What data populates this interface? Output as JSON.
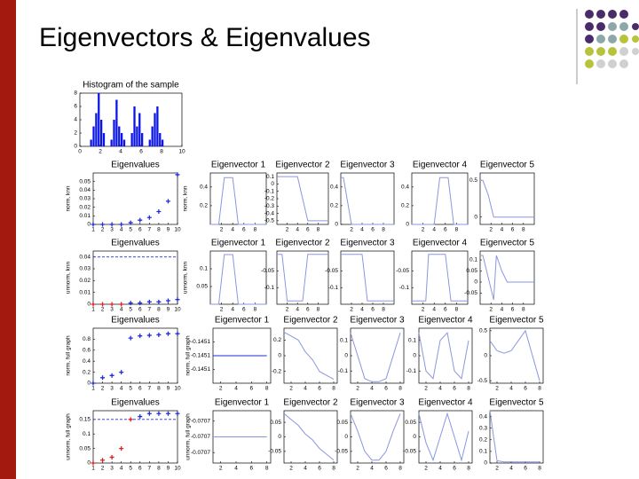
{
  "slide": {
    "title": "Eigenvectors & Eigenvalues"
  },
  "chart_data": [
    {
      "type": "histogram",
      "title": "Histogram of the sample",
      "color": "#0a14e6",
      "bins": [
        1,
        1.25,
        1.5,
        1.75,
        2,
        2.25,
        2.5,
        2.75,
        3,
        3.25,
        3.5,
        3.75,
        4,
        4.25,
        4.5,
        4.75,
        5,
        5.25,
        5.5,
        5.75,
        6,
        6.25,
        6.5,
        6.75,
        7,
        7.25,
        7.5,
        7.75,
        8,
        8.25,
        8.5
      ],
      "values": [
        1,
        3,
        5,
        8,
        4,
        2,
        0,
        0,
        1,
        4,
        7,
        3,
        2,
        1,
        0,
        0,
        2,
        6,
        3,
        5,
        2,
        0,
        0,
        1,
        3,
        5,
        6,
        2,
        1,
        0
      ],
      "xlim": [
        0,
        10
      ],
      "ylim": [
        0,
        8
      ],
      "xticks": [
        0,
        2,
        4,
        6,
        8,
        10
      ],
      "yticks": [
        0,
        2,
        4,
        6,
        8
      ]
    },
    {
      "type": "scatter",
      "title": "Eigenvalues",
      "ylabel": "norm, knn",
      "xlim": [
        1,
        10
      ],
      "ylim": [
        0,
        0.06
      ],
      "xticks": [
        1,
        2,
        3,
        4,
        5,
        6,
        7,
        8,
        9,
        10
      ],
      "yticks": [
        0,
        0.01,
        0.02,
        0.03,
        0.04,
        0.05
      ],
      "series": [
        {
          "color": "#1f2fd6",
          "x": [
            1,
            2,
            3,
            4,
            5,
            6,
            7,
            8,
            9,
            10
          ],
          "values": [
            0,
            0,
            0,
            0,
            0.002,
            0.005,
            0.008,
            0.015,
            0.027,
            0.058
          ]
        }
      ]
    },
    {
      "type": "line",
      "title": "Eigenvector 1",
      "ylabel": "norm, knn",
      "xlim": [
        0,
        10
      ],
      "ylim": [
        0,
        0.55
      ],
      "xticks": [
        2,
        4,
        6,
        8
      ],
      "yticks": [
        0.2,
        0.4
      ],
      "series": [
        {
          "color": "#8a96e0",
          "x": [
            0,
            1.5,
            2.5,
            4,
            5,
            6,
            8,
            10
          ],
          "values": [
            0,
            0,
            0.5,
            0.5,
            0,
            0,
            0,
            0
          ]
        }
      ]
    },
    {
      "type": "line",
      "title": "Eigenvector 2",
      "xlim": [
        0,
        10
      ],
      "ylim": [
        -0.55,
        0.15
      ],
      "xticks": [
        2,
        4,
        6,
        8
      ],
      "yticks": [
        0.1,
        0,
        -0.1,
        -0.2,
        -0.3,
        -0.4,
        -0.5
      ],
      "series": [
        {
          "color": "#8a96e0",
          "x": [
            0,
            4,
            5,
            6,
            8,
            10
          ],
          "values": [
            0.1,
            0.1,
            -0.2,
            -0.5,
            -0.5,
            -0.5
          ]
        }
      ]
    },
    {
      "type": "line",
      "title": "Eigenvector 3",
      "xlim": [
        0,
        10
      ],
      "ylim": [
        0,
        0.55
      ],
      "xticks": [
        2,
        4,
        6,
        8
      ],
      "yticks": [
        0,
        0.2,
        0.4
      ],
      "series": [
        {
          "color": "#8a96e0",
          "x": [
            0,
            0.5,
            2,
            4,
            6,
            8,
            10
          ],
          "values": [
            0.5,
            0.5,
            0,
            0,
            0,
            0,
            0
          ]
        }
      ]
    },
    {
      "type": "line",
      "title": "Eigenvector 4",
      "xlim": [
        0,
        10
      ],
      "ylim": [
        0,
        0.55
      ],
      "xticks": [
        2,
        4,
        6,
        8
      ],
      "yticks": [
        0,
        0.2,
        0.4
      ],
      "series": [
        {
          "color": "#8a96e0",
          "x": [
            0,
            4,
            5,
            6.5,
            7.5,
            10
          ],
          "values": [
            0,
            0,
            0.5,
            0.5,
            0,
            0
          ]
        }
      ]
    },
    {
      "type": "line",
      "title": "Eigenvector 5",
      "xlim": [
        0,
        10
      ],
      "ylim": [
        -0.1,
        0.6
      ],
      "xticks": [
        2,
        4,
        6,
        8
      ],
      "yticks": [
        0,
        0.5
      ],
      "series": [
        {
          "color": "#8a96e0",
          "x": [
            0,
            0.5,
            1.5,
            2.5,
            6,
            10
          ],
          "values": [
            0.5,
            0.5,
            0.3,
            0,
            0,
            0
          ]
        }
      ]
    },
    {
      "type": "scatter",
      "title": "Eigenvalues",
      "ylabel": "unnorm, knn",
      "xlim": [
        1,
        10
      ],
      "ylim": [
        0,
        0.045
      ],
      "xticks": [
        1,
        2,
        3,
        4,
        5,
        6,
        7,
        8,
        9,
        10
      ],
      "yticks": [
        0,
        0.01,
        0.02,
        0.03,
        0.04
      ],
      "threshold": 0.04,
      "series": [
        {
          "color": "#dd2222",
          "x": [
            1,
            2,
            3,
            4
          ],
          "values": [
            0,
            0,
            0,
            0
          ]
        },
        {
          "color": "#1f2fd6",
          "x": [
            5,
            6,
            7,
            8,
            9,
            10
          ],
          "values": [
            0.001,
            0.001,
            0.002,
            0.002,
            0.003,
            0.004
          ]
        }
      ]
    },
    {
      "type": "line",
      "title": "Eigenvector 1",
      "ylabel": "unnorm, knn",
      "xlim": [
        0,
        10
      ],
      "ylim": [
        0,
        0.15
      ],
      "xticks": [
        2,
        4,
        6,
        8
      ],
      "yticks": [
        0.05,
        0.1
      ],
      "series": [
        {
          "color": "#8a96e0",
          "x": [
            0,
            1.5,
            2.5,
            4,
            5,
            10
          ],
          "values": [
            0,
            0,
            0.14,
            0.14,
            0,
            0
          ]
        }
      ]
    },
    {
      "type": "line",
      "title": "Eigenvector 2",
      "xlim": [
        0,
        10
      ],
      "ylim": [
        -0.15,
        0.01
      ],
      "xticks": [
        2,
        4,
        6,
        8
      ],
      "yticks": [
        -0.1,
        -0.05
      ],
      "series": [
        {
          "color": "#8a96e0",
          "x": [
            0,
            1,
            2,
            4,
            5,
            6,
            10
          ],
          "values": [
            0,
            0,
            -0.14,
            -0.14,
            -0.14,
            0,
            0
          ]
        }
      ]
    },
    {
      "type": "line",
      "title": "Eigenvector 3",
      "xlim": [
        0,
        10
      ],
      "ylim": [
        -0.15,
        0.01
      ],
      "xticks": [
        2,
        4,
        6,
        8
      ],
      "yticks": [
        -0.1,
        -0.05
      ],
      "series": [
        {
          "color": "#8a96e0",
          "x": [
            0,
            4,
            5,
            10
          ],
          "values": [
            0,
            0,
            -0.14,
            -0.14
          ]
        }
      ]
    },
    {
      "type": "line",
      "title": "Eigenvector 4",
      "xlim": [
        0,
        10
      ],
      "ylim": [
        -0.15,
        0.01
      ],
      "xticks": [
        2,
        4,
        6,
        8
      ],
      "yticks": [
        -0.1,
        -0.05
      ],
      "series": [
        {
          "color": "#8a96e0",
          "x": [
            0,
            2.5,
            3,
            6,
            7,
            10
          ],
          "values": [
            -0.14,
            -0.14,
            0,
            0,
            -0.14,
            -0.14
          ]
        }
      ]
    },
    {
      "type": "line",
      "title": "Eigenvector 5",
      "xlim": [
        0,
        10
      ],
      "ylim": [
        -0.1,
        0.14
      ],
      "xticks": [
        2,
        4,
        6,
        8
      ],
      "yticks": [
        -0.05,
        0,
        0.05,
        0.1
      ],
      "series": [
        {
          "color": "#8a96e0",
          "x": [
            0,
            0.5,
            1.5,
            2.5,
            3,
            4,
            5,
            10
          ],
          "values": [
            0.12,
            0.12,
            0.02,
            -0.08,
            0.12,
            0.05,
            0,
            0
          ]
        }
      ]
    },
    {
      "type": "scatter",
      "title": "Eigenvalues",
      "ylabel": "norm, full graph",
      "xlim": [
        1,
        10
      ],
      "ylim": [
        0,
        1
      ],
      "xticks": [
        1,
        2,
        3,
        4,
        5,
        6,
        7,
        8,
        9,
        10
      ],
      "yticks": [
        0,
        0.2,
        0.4,
        0.6,
        0.8
      ],
      "series": [
        {
          "color": "#1f2fd6",
          "x": [
            1,
            2,
            3,
            4,
            5,
            6,
            7,
            8,
            9,
            10
          ],
          "values": [
            0,
            0.1,
            0.14,
            0.2,
            0.82,
            0.86,
            0.87,
            0.88,
            0.9,
            0.9
          ]
        }
      ]
    },
    {
      "type": "line",
      "title": "Eigenvector 1",
      "ylabel": "norm, full graph",
      "xlim": [
        1,
        8.5
      ],
      "ylim": [
        -0.1452,
        -0.145
      ],
      "xticks": [
        2,
        4,
        6,
        8
      ],
      "yticks": [
        {
          "value": -0.14515,
          "label": "-0.1451"
        },
        {
          "value": -0.1451,
          "label": "-0.1451"
        },
        {
          "value": -0.14505,
          "label": "-0.1451"
        }
      ],
      "series": [
        {
          "color": "#1f2fd6",
          "x": [
            1,
            8
          ],
          "values": [
            -0.1451,
            -0.1451
          ]
        }
      ]
    },
    {
      "type": "line",
      "title": "Eigenvector 2",
      "xlim": [
        1,
        8.5
      ],
      "ylim": [
        -0.35,
        0.35
      ],
      "xticks": [
        2,
        4,
        6,
        8
      ],
      "yticks": [
        -0.2,
        0,
        0.2
      ],
      "series": [
        {
          "color": "#8a96e0",
          "x": [
            1,
            2,
            3,
            4,
            5,
            6,
            7,
            8
          ],
          "values": [
            0.3,
            0.25,
            0.2,
            0.05,
            -0.05,
            -0.2,
            -0.25,
            -0.3
          ]
        }
      ]
    },
    {
      "type": "line",
      "title": "Eigenvector 3",
      "xlim": [
        1,
        8.5
      ],
      "ylim": [
        -0.18,
        0.18
      ],
      "xticks": [
        2,
        4,
        6,
        8
      ],
      "yticks": [
        -0.1,
        0,
        0.1
      ],
      "series": [
        {
          "color": "#8a96e0",
          "x": [
            1,
            2,
            3,
            4,
            5,
            6,
            7,
            8
          ],
          "values": [
            0.15,
            0,
            -0.15,
            -0.17,
            -0.17,
            -0.15,
            0,
            0.15
          ]
        }
      ]
    },
    {
      "type": "line",
      "title": "Eigenvector 4",
      "xlim": [
        1,
        8.5
      ],
      "ylim": [
        -0.18,
        0.18
      ],
      "xticks": [
        2,
        4,
        6,
        8
      ],
      "yticks": [
        -0.1,
        0,
        0.1
      ],
      "series": [
        {
          "color": "#8a96e0",
          "x": [
            1,
            2,
            3,
            4,
            5,
            6,
            7,
            8
          ],
          "values": [
            0.15,
            -0.1,
            -0.15,
            0.1,
            0.15,
            -0.1,
            -0.15,
            0.1
          ]
        }
      ]
    },
    {
      "type": "line",
      "title": "Eigenvector 5",
      "xlim": [
        1,
        8.5
      ],
      "ylim": [
        -0.55,
        0.55
      ],
      "xticks": [
        2,
        4,
        6,
        8
      ],
      "yticks": [
        -0.5,
        0,
        0.5
      ],
      "series": [
        {
          "color": "#8a96e0",
          "x": [
            1,
            2,
            3,
            4,
            5,
            6,
            7,
            8
          ],
          "values": [
            0.3,
            0.1,
            0.05,
            0.1,
            0.3,
            0.5,
            0,
            -0.5
          ]
        }
      ]
    },
    {
      "type": "scatter",
      "title": "Eigenvalues",
      "ylabel": "unnorm, full graph",
      "xlim": [
        1,
        10
      ],
      "ylim": [
        0,
        0.18
      ],
      "xticks": [
        1,
        2,
        3,
        4,
        5,
        6,
        7,
        8,
        9,
        10
      ],
      "yticks": [
        0,
        0.05,
        0.1,
        0.15
      ],
      "threshold": 0.15,
      "series": [
        {
          "color": "#dd2222",
          "x": [
            1,
            2,
            3,
            4,
            5
          ],
          "values": [
            0,
            0.01,
            0.02,
            0.05,
            0.15
          ]
        },
        {
          "color": "#1f2fd6",
          "x": [
            6,
            7,
            8,
            9,
            10
          ],
          "values": [
            0.16,
            0.17,
            0.17,
            0.17,
            0.17
          ]
        }
      ]
    },
    {
      "type": "line",
      "title": "Eigenvector 1",
      "ylabel": "unnorm, full graph",
      "xlim": [
        1,
        8.5
      ],
      "ylim": [
        -0.07075,
        -0.07065
      ],
      "xticks": [
        2,
        4,
        6,
        8
      ],
      "yticks": [
        {
          "value": -0.07073,
          "label": "-0.0707"
        },
        {
          "value": -0.0707,
          "label": "-0.0707"
        },
        {
          "value": -0.07067,
          "label": "-0.0707"
        }
      ],
      "series": [
        {
          "color": "#8a96e0",
          "x": [
            1,
            8
          ],
          "values": [
            -0.0707,
            -0.0707
          ]
        }
      ]
    },
    {
      "type": "line",
      "title": "Eigenvector 2",
      "xlim": [
        1,
        8.5
      ],
      "ylim": [
        -0.09,
        0.09
      ],
      "xticks": [
        2,
        4,
        6,
        8
      ],
      "yticks": [
        -0.05,
        0,
        0.05
      ],
      "series": [
        {
          "color": "#8a96e0",
          "x": [
            1,
            2,
            3,
            4,
            5,
            6,
            7,
            8
          ],
          "values": [
            0.08,
            0.06,
            0.04,
            0.01,
            -0.01,
            -0.04,
            -0.06,
            -0.08
          ]
        }
      ]
    },
    {
      "type": "line",
      "title": "Eigenvector 3",
      "xlim": [
        1,
        8.5
      ],
      "ylim": [
        -0.09,
        0.09
      ],
      "xticks": [
        2,
        4,
        6,
        8
      ],
      "yticks": [
        -0.05,
        0,
        0.05
      ],
      "series": [
        {
          "color": "#8a96e0",
          "x": [
            1,
            2,
            3,
            4,
            5,
            6,
            7,
            8
          ],
          "values": [
            0.08,
            0.02,
            -0.05,
            -0.08,
            -0.08,
            -0.05,
            0.02,
            0.08
          ]
        }
      ]
    },
    {
      "type": "line",
      "title": "Eigenvector 4",
      "xlim": [
        1,
        8.5
      ],
      "ylim": [
        -0.09,
        0.09
      ],
      "xticks": [
        2,
        4,
        6,
        8
      ],
      "yticks": [
        -0.05,
        0,
        0.05
      ],
      "series": [
        {
          "color": "#8a96e0",
          "x": [
            1,
            2,
            3,
            4,
            5,
            6,
            7,
            8
          ],
          "values": [
            0.08,
            -0.02,
            -0.08,
            0,
            0.08,
            0,
            -0.08,
            0.02
          ]
        }
      ]
    },
    {
      "type": "line",
      "title": "Eigenvector 5",
      "xlim": [
        1,
        8.5
      ],
      "ylim": [
        0,
        0.45
      ],
      "xticks": [
        2,
        4,
        6,
        8
      ],
      "yticks": [
        0,
        0.1,
        0.2,
        0.3,
        0.4
      ],
      "series": [
        {
          "color": "#8a96e0",
          "x": [
            1,
            2,
            3,
            4,
            5,
            6,
            7,
            8
          ],
          "values": [
            0.45,
            0.02,
            0.01,
            0.01,
            0.01,
            0.01,
            0.01,
            0.01
          ]
        }
      ]
    }
  ]
}
